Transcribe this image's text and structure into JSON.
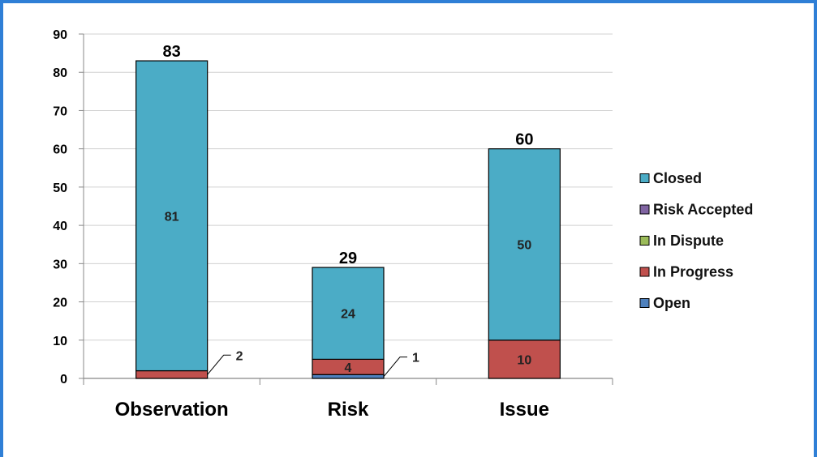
{
  "chart_data": {
    "type": "bar",
    "stacked": true,
    "categories": [
      "Observation",
      "Risk",
      "Issue"
    ],
    "series": [
      {
        "name": "Open",
        "values": [
          0,
          1,
          0
        ],
        "color": "#4f81bd"
      },
      {
        "name": "In Progress",
        "values": [
          2,
          4,
          10
        ],
        "color": "#c0504d"
      },
      {
        "name": "In Dispute",
        "values": [
          0,
          0,
          0
        ],
        "color": "#9bbb59"
      },
      {
        "name": "Risk Accepted",
        "values": [
          0,
          0,
          0
        ],
        "color": "#8064a2"
      },
      {
        "name": "Closed",
        "values": [
          81,
          24,
          50
        ],
        "color": "#4bacc6"
      }
    ],
    "totals": [
      83,
      29,
      60
    ],
    "ylim": [
      0,
      90
    ],
    "yticks": [
      0,
      10,
      20,
      30,
      40,
      50,
      60,
      70,
      80,
      90
    ],
    "grid": true,
    "legend_position": "right",
    "legend_order": [
      "Closed",
      "Risk Accepted",
      "In Dispute",
      "In Progress",
      "Open"
    ],
    "title": "",
    "xlabel": "",
    "ylabel": ""
  }
}
